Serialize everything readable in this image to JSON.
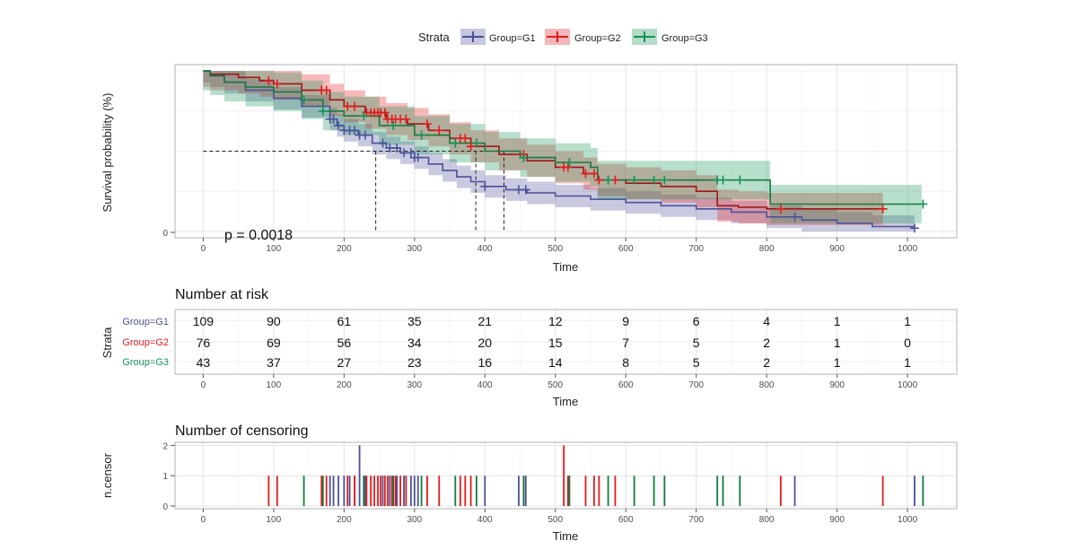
{
  "legend": {
    "title": "Strata",
    "entries": [
      "Group=G1",
      "Group=G2",
      "Group=G3"
    ]
  },
  "colors": {
    "g1": "#4b5199",
    "g2": "#e41a1c",
    "g3": "#139157",
    "g2_line": "#a01515",
    "g3_line": "#137a3f",
    "grid": "#e6e6e6",
    "panel_border": "#b3b3b3"
  },
  "survival": {
    "ylabel": "Survival probability (%)",
    "xlabel": "Time",
    "y_tick": "0",
    "pvalue": "p = 0.0018"
  },
  "risk_table": {
    "title": "Number at risk",
    "ylabel": "Strata",
    "xlabel": "Time",
    "rows": [
      {
        "label": "Group=G1",
        "values": [
          "109",
          "90",
          "61",
          "35",
          "21",
          "12",
          "9",
          "6",
          "4",
          "1",
          "1"
        ]
      },
      {
        "label": "Group=G2",
        "values": [
          "76",
          "69",
          "56",
          "34",
          "20",
          "15",
          "7",
          "5",
          "2",
          "1",
          "0"
        ]
      },
      {
        "label": "Group=G3",
        "values": [
          "43",
          "37",
          "27",
          "23",
          "16",
          "14",
          "8",
          "5",
          "2",
          "1",
          "1"
        ]
      }
    ]
  },
  "censor_panel": {
    "title": "Number of censoring",
    "ylabel": "n.censor",
    "xlabel": "Time",
    "y_ticks": [
      "0",
      "1",
      "2"
    ]
  },
  "x_ticks": [
    "0",
    "100",
    "200",
    "300",
    "400",
    "500",
    "600",
    "700",
    "800",
    "900",
    "1000"
  ],
  "chart_data": [
    {
      "type": "line",
      "title": "",
      "xlabel": "Time",
      "ylabel": "Survival probability (%)",
      "xlim": [
        -40,
        1070
      ],
      "ylim": [
        -0.04,
        1.04
      ],
      "series": [
        {
          "name": "Group=G1",
          "x": [
            0,
            10,
            30,
            60,
            100,
            140,
            180,
            190,
            200,
            220,
            240,
            260,
            280,
            300,
            320,
            340,
            360,
            380,
            400,
            430,
            460,
            500,
            550,
            600,
            650,
            700,
            750,
            800,
            850,
            900,
            950,
            1010
          ],
          "y": [
            1.0,
            0.97,
            0.93,
            0.88,
            0.83,
            0.78,
            0.7,
            0.66,
            0.63,
            0.6,
            0.55,
            0.52,
            0.49,
            0.46,
            0.42,
            0.38,
            0.34,
            0.31,
            0.28,
            0.26,
            0.24,
            0.22,
            0.2,
            0.18,
            0.16,
            0.14,
            0.12,
            0.09,
            0.07,
            0.05,
            0.03,
            0.02
          ]
        },
        {
          "name": "Group=G2",
          "x": [
            0,
            10,
            50,
            80,
            100,
            140,
            180,
            200,
            230,
            260,
            290,
            320,
            350,
            380,
            420,
            460,
            500,
            540,
            560,
            600,
            650,
            700,
            730,
            760,
            800,
            820,
            850,
            900,
            965
          ],
          "y": [
            1.0,
            0.98,
            0.96,
            0.94,
            0.92,
            0.88,
            0.82,
            0.78,
            0.74,
            0.7,
            0.67,
            0.63,
            0.58,
            0.53,
            0.48,
            0.44,
            0.4,
            0.36,
            0.32,
            0.3,
            0.28,
            0.25,
            0.16,
            0.15,
            0.14,
            0.14,
            0.14,
            0.14,
            0.14
          ]
        },
        {
          "name": "Group=G3",
          "x": [
            0,
            10,
            30,
            60,
            100,
            140,
            170,
            200,
            250,
            300,
            350,
            400,
            450,
            500,
            550,
            560,
            600,
            650,
            700,
            750,
            805,
            850,
            900,
            950,
            1020
          ],
          "y": [
            1.0,
            0.97,
            0.93,
            0.9,
            0.87,
            0.82,
            0.75,
            0.72,
            0.66,
            0.6,
            0.55,
            0.5,
            0.46,
            0.43,
            0.4,
            0.32,
            0.32,
            0.32,
            0.32,
            0.32,
            0.17,
            0.17,
            0.17,
            0.17,
            0.17
          ]
        }
      ],
      "median_survival": [
        245,
        387,
        427
      ]
    },
    {
      "type": "bar",
      "title": "Number of censoring",
      "xlabel": "Time",
      "ylabel": "n.censor",
      "xlim": [
        -40,
        1070
      ],
      "ylim": [
        0,
        2.1
      ],
      "series": [
        {
          "name": "Group=G1",
          "x": [
            180,
            185,
            192,
            200,
            208,
            215,
            222,
            230,
            255,
            265,
            275,
            285,
            295,
            300,
            305,
            400,
            448,
            458,
            840,
            1010
          ],
          "values": [
            1,
            1,
            1,
            1,
            1,
            1,
            2,
            1,
            1,
            1,
            1,
            1,
            1,
            1,
            1,
            1,
            1,
            1,
            1,
            1
          ]
        },
        {
          "name": "Group=G2",
          "x": [
            93,
            105,
            168,
            175,
            205,
            215,
            232,
            238,
            243,
            248,
            252,
            258,
            262,
            268,
            273,
            280,
            288,
            318,
            335,
            365,
            372,
            380,
            455,
            512,
            518,
            543,
            555,
            562,
            585,
            820,
            965
          ],
          "values": [
            1,
            1,
            1,
            1,
            1,
            1,
            1,
            1,
            1,
            1,
            1,
            1,
            1,
            1,
            1,
            1,
            1,
            1,
            1,
            1,
            1,
            1,
            1,
            2,
            1,
            1,
            1,
            1,
            1,
            1,
            1
          ]
        },
        {
          "name": "Group=G3",
          "x": [
            143,
            170,
            228,
            270,
            310,
            358,
            388,
            455,
            520,
            575,
            612,
            640,
            655,
            730,
            738,
            762,
            1022
          ],
          "values": [
            1,
            1,
            1,
            1,
            1,
            1,
            1,
            1,
            1,
            1,
            1,
            1,
            1,
            1,
            1,
            1,
            1
          ]
        }
      ]
    }
  ]
}
